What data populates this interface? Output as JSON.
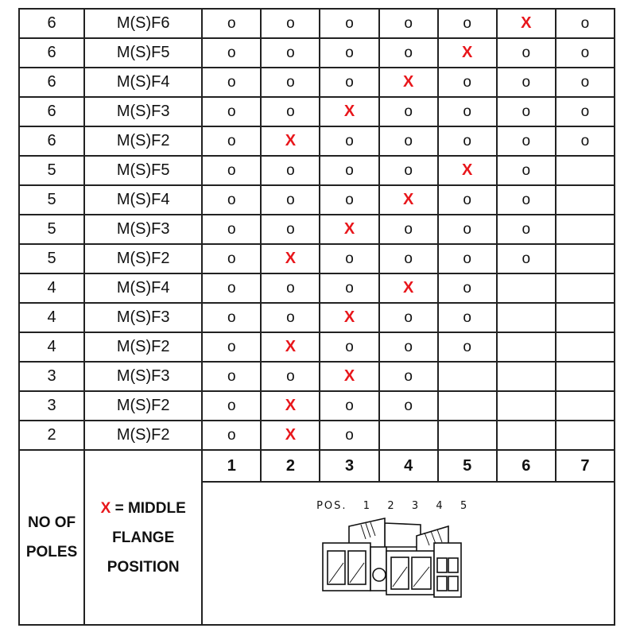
{
  "rows": [
    {
      "poles": "6",
      "type": "M(S)F6",
      "cells": [
        "o",
        "o",
        "o",
        "o",
        "o",
        "X",
        "o"
      ]
    },
    {
      "poles": "6",
      "type": "M(S)F5",
      "cells": [
        "o",
        "o",
        "o",
        "o",
        "X",
        "o",
        "o"
      ]
    },
    {
      "poles": "6",
      "type": "M(S)F4",
      "cells": [
        "o",
        "o",
        "o",
        "X",
        "o",
        "o",
        "o"
      ]
    },
    {
      "poles": "6",
      "type": "M(S)F3",
      "cells": [
        "o",
        "o",
        "X",
        "o",
        "o",
        "o",
        "o"
      ]
    },
    {
      "poles": "6",
      "type": "M(S)F2",
      "cells": [
        "o",
        "X",
        "o",
        "o",
        "o",
        "o",
        "o"
      ]
    },
    {
      "poles": "5",
      "type": "M(S)F5",
      "cells": [
        "o",
        "o",
        "o",
        "o",
        "X",
        "o",
        ""
      ]
    },
    {
      "poles": "5",
      "type": "M(S)F4",
      "cells": [
        "o",
        "o",
        "o",
        "X",
        "o",
        "o",
        ""
      ]
    },
    {
      "poles": "5",
      "type": "M(S)F3",
      "cells": [
        "o",
        "o",
        "X",
        "o",
        "o",
        "o",
        ""
      ]
    },
    {
      "poles": "5",
      "type": "M(S)F2",
      "cells": [
        "o",
        "X",
        "o",
        "o",
        "o",
        "o",
        ""
      ]
    },
    {
      "poles": "4",
      "type": "M(S)F4",
      "cells": [
        "o",
        "o",
        "o",
        "X",
        "o",
        "",
        ""
      ]
    },
    {
      "poles": "4",
      "type": "M(S)F3",
      "cells": [
        "o",
        "o",
        "X",
        "o",
        "o",
        "",
        ""
      ]
    },
    {
      "poles": "4",
      "type": "M(S)F2",
      "cells": [
        "o",
        "X",
        "o",
        "o",
        "o",
        "",
        ""
      ]
    },
    {
      "poles": "3",
      "type": "M(S)F3",
      "cells": [
        "o",
        "o",
        "X",
        "o",
        "",
        "",
        ""
      ]
    },
    {
      "poles": "3",
      "type": "M(S)F2",
      "cells": [
        "o",
        "X",
        "o",
        "o",
        "",
        "",
        ""
      ]
    },
    {
      "poles": "2",
      "type": "M(S)F2",
      "cells": [
        "o",
        "X",
        "o",
        "",
        "",
        "",
        ""
      ]
    }
  ],
  "position_headers": [
    "1",
    "2",
    "3",
    "4",
    "5",
    "6",
    "7"
  ],
  "footer": {
    "poles_label_line1": "NO OF",
    "poles_label_line2": "POLES",
    "legend_symbol": "X",
    "legend_text_line1": " = MIDDLE",
    "legend_text_line2": "FLANGE",
    "legend_text_line3": "POSITION",
    "diagram_label": "POS.  1  2  3  4  5"
  },
  "colors": {
    "middle_flange_mark": "#e8161b",
    "border": "#222222"
  }
}
